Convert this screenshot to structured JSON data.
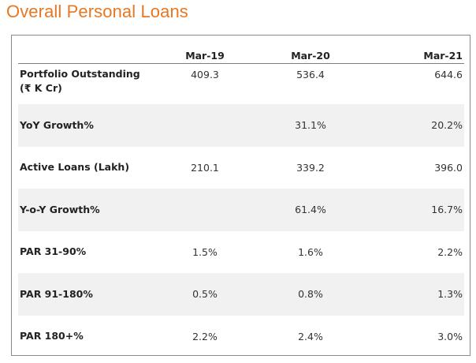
{
  "title": "Overall Personal Loans",
  "table": {
    "columns": [
      "",
      "Mar-19",
      "Mar-20",
      "Mar-21"
    ],
    "rows": [
      {
        "label_line1": "Portfolio Outstanding",
        "label_line2": "(₹ K Cr)",
        "values": [
          "409.3",
          "536.4",
          "644.6"
        ]
      },
      {
        "label_line1": "YoY Growth%",
        "values": [
          "",
          "31.1%",
          "20.2%"
        ]
      },
      {
        "label_line1": "Active Loans (Lakh)",
        "values": [
          "210.1",
          "339.2",
          "396.0"
        ]
      },
      {
        "label_line1": "Y-o-Y Growth%",
        "values": [
          "",
          "61.4%",
          "16.7%"
        ]
      },
      {
        "label_line1": "PAR 31-90%",
        "values": [
          "1.5%",
          "1.6%",
          "2.2%"
        ]
      },
      {
        "label_line1": "PAR 91-180%",
        "values": [
          "0.5%",
          "0.8%",
          "1.3%"
        ]
      },
      {
        "label_line1": "PAR 180+%",
        "values": [
          "2.2%",
          "2.4%",
          "3.0%"
        ]
      }
    ]
  },
  "colors": {
    "title": "#E87722",
    "shaded_row": "#F1F1F1",
    "border": "#8a8a8a"
  }
}
